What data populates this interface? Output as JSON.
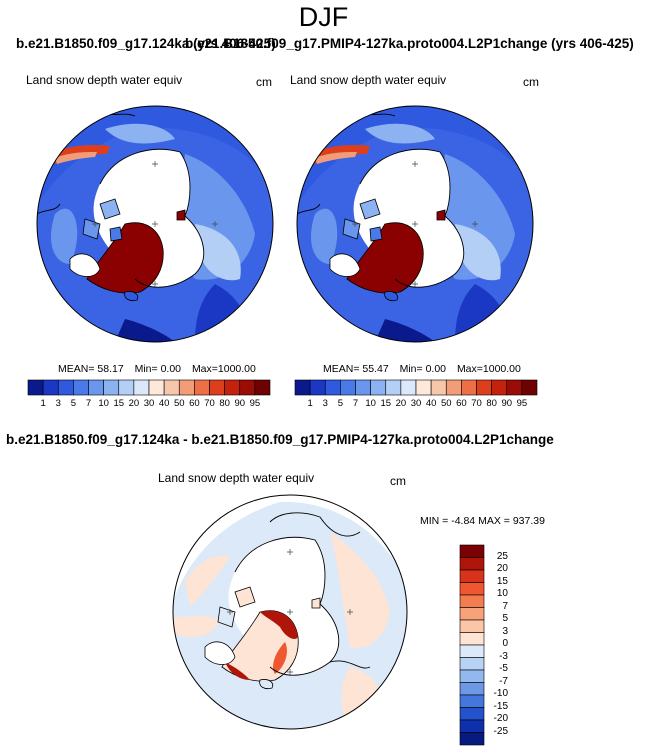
{
  "page": {
    "title": "DJF"
  },
  "panels": {
    "left": {
      "case_title": "b.e21.B1850.f09_g17.124ka (yrs 406-425)",
      "variable": "Land snow depth water equiv",
      "units": "cm",
      "mean_label": "MEAN=",
      "mean_value": "58.17",
      "min_label": "Min=",
      "min_value": "0.00",
      "max_label": "Max=",
      "max_value": "1000.00"
    },
    "right": {
      "case_title": "b.e21.B1850.f09_g17.PMIP4-127ka.proto004.L2P1change (yrs 406-425)",
      "variable": "Land snow depth water equiv",
      "units": "cm",
      "mean_label": "MEAN=",
      "mean_value": "55.47",
      "min_label": "Min=",
      "min_value": "0.00",
      "max_label": "Max=",
      "max_value": "1000.00"
    },
    "diff": {
      "case_title": "b.e21.B1850.f09_g17.124ka - b.e21.B1850.f09_g17.PMIP4-127ka.proto004.L2P1change",
      "variable": "Land snow depth water equiv",
      "units": "cm",
      "min_label": "MIN =",
      "min_value": "-4.84",
      "max_label": "MAX =",
      "max_value": "937.39"
    }
  },
  "colorbars": {
    "absolute": {
      "ticks": [
        "1",
        "3",
        "5",
        "7",
        "10",
        "15",
        "20",
        "30",
        "40",
        "50",
        "60",
        "70",
        "80",
        "90",
        "95"
      ],
      "colors": [
        "#0a1a8c",
        "#1b38c4",
        "#2f5ae0",
        "#4a7ae8",
        "#6a96ee",
        "#8cb2f2",
        "#b4cff6",
        "#dbe7fa",
        "#fde8da",
        "#f7c7ac",
        "#f29d78",
        "#ec6f45",
        "#dd3f1c",
        "#c4220c",
        "#9a0c05",
        "#6e0202"
      ]
    },
    "difference": {
      "ticks": [
        "25",
        "20",
        "15",
        "10",
        "7",
        "5",
        "3",
        "0",
        "-3",
        "-5",
        "-7",
        "-10",
        "-15",
        "-20",
        "-25"
      ],
      "colors": [
        "#7a0202",
        "#b0150a",
        "#d8321a",
        "#ef5730",
        "#f47d50",
        "#f8a27a",
        "#fbc6a8",
        "#fde4d4",
        "#dbe9f8",
        "#b8d2f4",
        "#93b8ee",
        "#6c98e6",
        "#4576dc",
        "#2452cc",
        "#0e30ac",
        "#061a80"
      ]
    }
  },
  "map_colors": {
    "ocean": "#ffffff",
    "snow_low": "#2f5ae0",
    "snow_mid": "#6a96ee",
    "snow_high": "#b4cff6",
    "ice_sheet": "#8b0000",
    "diff_positive": "#fde4d4",
    "diff_negative": "#dbe9f8",
    "diff_strong": "#c4220c"
  }
}
